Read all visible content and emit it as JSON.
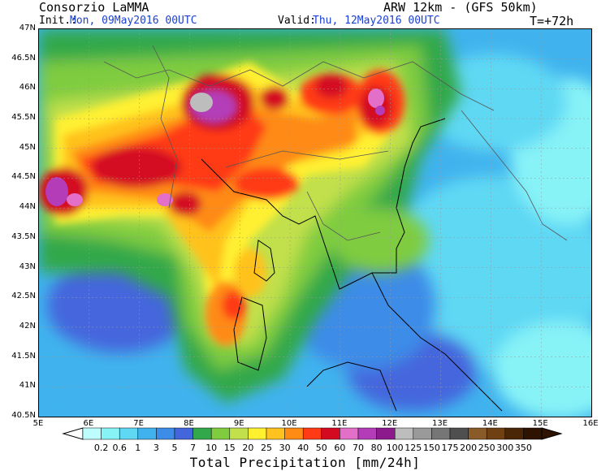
{
  "header": {
    "org": "Consorzio LaMMA",
    "model": "ARW 12km - (GFS 50km)",
    "init_label": "Init.:",
    "init_value": "Mon, 09May2016 00UTC",
    "valid_label": "Valid:",
    "valid_value": "Thu, 12May2016 00UTC",
    "forecast_step": "T=+72h"
  },
  "map": {
    "lat_ticks": [
      "47N",
      "46.5N",
      "46N",
      "45.5N",
      "45N",
      "44.5N",
      "44N",
      "43.5N",
      "43N",
      "42.5N",
      "42N",
      "41.5N",
      "41N",
      "40.5N"
    ],
    "lon_ticks": [
      "5E",
      "6E",
      "7E",
      "8E",
      "9E",
      "10E",
      "11E",
      "12E",
      "13E",
      "14E",
      "15E",
      "16E"
    ]
  },
  "colorbar": {
    "title": "Total Precipitation [mm/24h]",
    "levels": [
      "0.2",
      "0.6",
      "1",
      "3",
      "5",
      "7",
      "10",
      "15",
      "20",
      "25",
      "30",
      "40",
      "50",
      "60",
      "70",
      "80",
      "100",
      "125",
      "150",
      "175",
      "200",
      "250",
      "300",
      "350"
    ],
    "colors": [
      "#bdfdfd",
      "#87f3f7",
      "#5fd8f4",
      "#40b3ee",
      "#3c8ce8",
      "#4466dd",
      "#32a84a",
      "#7fcc3f",
      "#c2e04b",
      "#fff030",
      "#ffc21f",
      "#ff8a14",
      "#ff3a14",
      "#d40a20",
      "#e36fc8",
      "#b43cb8",
      "#8c1a8c",
      "#bdbdbd",
      "#9a9a9a",
      "#767676",
      "#4f4f4f",
      "#8a5a28",
      "#6e4012",
      "#4a2606",
      "#2e1300"
    ]
  }
}
